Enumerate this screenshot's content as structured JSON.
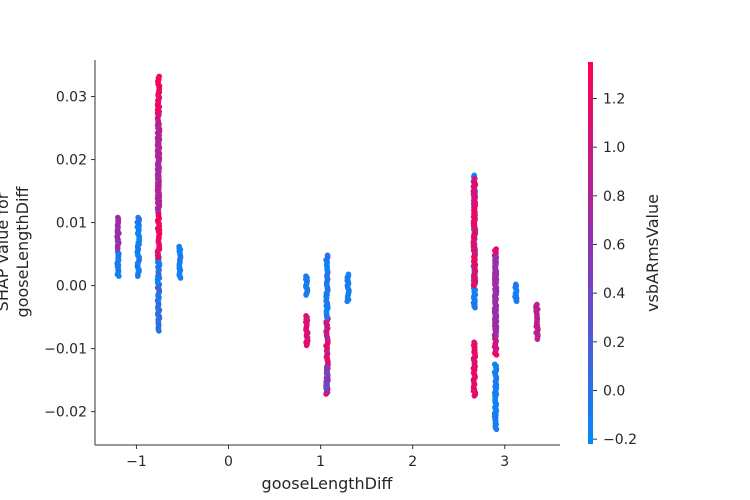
{
  "chart_data": {
    "type": "scatter",
    "title": "",
    "xlabel": "gooseLengthDiff",
    "ylabel_lines": [
      "SHAP value for",
      "gooseLengthDiff"
    ],
    "xlim": [
      -1.45,
      3.6
    ],
    "ylim": [
      -0.0253,
      0.0358
    ],
    "x_ticks": [
      -1,
      0,
      1,
      2,
      3
    ],
    "x_tick_labels": [
      "−1",
      "0",
      "1",
      "2",
      "3"
    ],
    "y_ticks": [
      -0.02,
      -0.01,
      0.0,
      0.01,
      0.02,
      0.03
    ],
    "y_tick_labels": [
      "−0.02",
      "−0.01",
      "0.00",
      "0.01",
      "0.02",
      "0.03"
    ],
    "grid": false,
    "colorbar": {
      "label": "vsbARmsValue",
      "range": [
        -0.22,
        1.35
      ],
      "ticks": [
        -0.2,
        0.0,
        0.2,
        0.4,
        0.6,
        0.8,
        1.0,
        1.2
      ],
      "tick_labels": [
        "−0.2",
        "0.0",
        "0.2",
        "0.4",
        "0.6",
        "0.8",
        "1.0",
        "1.2"
      ],
      "color_low": "#008bfb",
      "color_mid": "#8c34b6",
      "color_high": "#ff0052"
    },
    "point_groups": [
      {
        "x": -1.2,
        "y_min": 0.0015,
        "y_max": 0.0053,
        "feature_min": -0.2,
        "feature_max": 0.0
      },
      {
        "x": -1.2,
        "y_min": 0.0058,
        "y_max": 0.0108,
        "feature_min": 0.55,
        "feature_max": 0.75
      },
      {
        "x": -0.98,
        "y_min": 0.0015,
        "y_max": 0.0108,
        "feature_min": -0.2,
        "feature_max": 0.0
      },
      {
        "x": -0.76,
        "y_min": -0.0072,
        "y_max": 0.0045,
        "feature_min": -0.2,
        "feature_max": 0.2
      },
      {
        "x": -0.76,
        "y_min": 0.0045,
        "y_max": 0.0332,
        "feature_min": 1.0,
        "feature_max": 1.35
      },
      {
        "x": -0.76,
        "y_min": 0.012,
        "y_max": 0.026,
        "feature_min": 0.6,
        "feature_max": 0.9
      },
      {
        "x": -0.53,
        "y_min": 0.0012,
        "y_max": 0.0062,
        "feature_min": -0.2,
        "feature_max": 0.0
      },
      {
        "x": 0.85,
        "y_min": -0.0015,
        "y_max": 0.0015,
        "feature_min": -0.2,
        "feature_max": 0.0
      },
      {
        "x": 0.85,
        "y_min": -0.0095,
        "y_max": -0.0048,
        "feature_min": 0.9,
        "feature_max": 1.3
      },
      {
        "x": 1.07,
        "y_min": -0.0172,
        "y_max": -0.005,
        "feature_min": 0.8,
        "feature_max": 1.3
      },
      {
        "x": 1.07,
        "y_min": -0.005,
        "y_max": 0.0048,
        "feature_min": -0.2,
        "feature_max": 0.1
      },
      {
        "x": 1.07,
        "y_min": -0.0168,
        "y_max": -0.013,
        "feature_min": 0.3,
        "feature_max": 0.6
      },
      {
        "x": 1.3,
        "y_min": -0.0025,
        "y_max": 0.0018,
        "feature_min": -0.2,
        "feature_max": 0.0
      },
      {
        "x": 2.67,
        "y_min": -0.0175,
        "y_max": -0.009,
        "feature_min": 1.0,
        "feature_max": 1.3
      },
      {
        "x": 2.67,
        "y_min": -0.0035,
        "y_max": 0.0175,
        "feature_min": -0.2,
        "feature_max": 0.1
      },
      {
        "x": 2.67,
        "y_min": 0.0,
        "y_max": 0.017,
        "feature_min": 1.0,
        "feature_max": 1.3
      },
      {
        "x": 2.9,
        "y_min": -0.0228,
        "y_max": -0.0125,
        "feature_min": -0.2,
        "feature_max": 0.0
      },
      {
        "x": 2.9,
        "y_min": -0.011,
        "y_max": 0.0058,
        "feature_min": 0.9,
        "feature_max": 1.3
      },
      {
        "x": 2.9,
        "y_min": -0.008,
        "y_max": 0.0045,
        "feature_min": 0.5,
        "feature_max": 0.8
      },
      {
        "x": 3.12,
        "y_min": -0.0025,
        "y_max": 0.0002,
        "feature_min": -0.2,
        "feature_max": 0.0
      },
      {
        "x": 3.35,
        "y_min": -0.0085,
        "y_max": -0.003,
        "feature_min": 0.7,
        "feature_max": 1.0
      }
    ]
  }
}
